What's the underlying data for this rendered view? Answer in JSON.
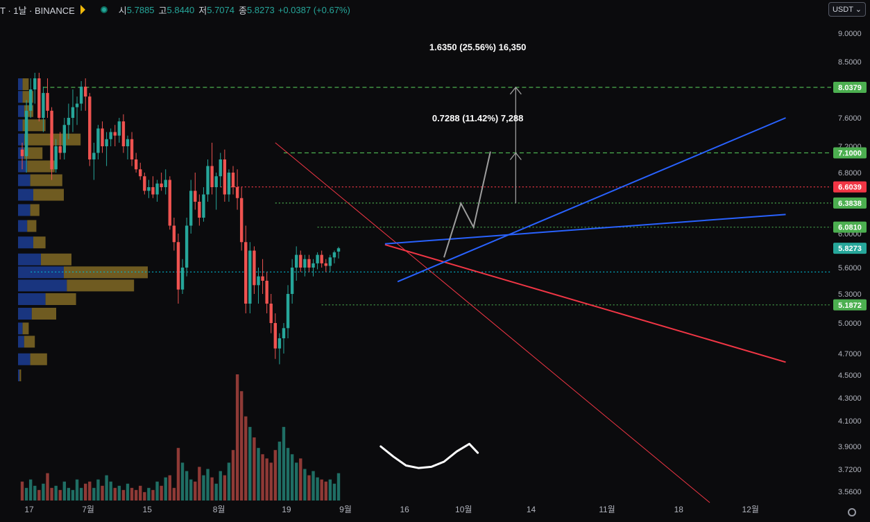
{
  "header": {
    "symbol": "T · 1날 · BINANCE",
    "open_label": "시",
    "open": "5.7885",
    "high_label": "고",
    "high": "5.8440",
    "low_label": "저",
    "low": "5.7074",
    "close_label": "종",
    "close": "5.8273",
    "change": "+0.0387 (+0.67%)"
  },
  "currency": "USDT",
  "colors": {
    "up": "#26a69a",
    "down": "#ef5350",
    "background": "#0b0b0d",
    "blue_line": "#2962ff"
  },
  "icons": [
    "flag-icon",
    "status-dot-icon",
    "chevron-down-icon",
    "settings-icon"
  ],
  "chart_data": {
    "type": "candlestick",
    "y_ticks": [
      "9.0000",
      "8.5000",
      "8.0000",
      "7.6000",
      "7.2000",
      "6.8000",
      "6.4000",
      "6.0000",
      "5.6000",
      "5.3000",
      "5.0000",
      "4.7000",
      "4.5000",
      "4.3000",
      "4.1000",
      "3.9000",
      "3.7200",
      "3.5600"
    ],
    "y_tick_values": [
      9.0,
      8.5,
      8.0,
      7.6,
      7.2,
      6.8,
      6.4,
      6.0,
      5.6,
      5.3,
      5.0,
      4.7,
      4.5,
      4.3,
      4.1,
      3.9,
      3.72,
      3.56
    ],
    "x_ticks": [
      "17",
      "7월",
      "15",
      "8월",
      "19",
      "9월",
      "16",
      "10월",
      "14",
      "11월",
      "18",
      "12월"
    ],
    "x_tick_days": [
      0,
      14,
      28,
      45,
      61,
      75,
      89,
      103,
      119,
      137,
      154,
      171
    ],
    "price_labels": [
      {
        "value": 8.0379,
        "text": "8.0379",
        "color": "#4caf50"
      },
      {
        "value": 7.1,
        "text": "7.1000",
        "color": "#4caf50"
      },
      {
        "value": 6.6039,
        "text": "6.6039",
        "color": "#f23645"
      },
      {
        "value": 6.3838,
        "text": "6.3838",
        "color": "#4caf50"
      },
      {
        "value": 6.081,
        "text": "6.0810",
        "color": "#4caf50"
      },
      {
        "value": 5.8273,
        "text": "5.8273",
        "color": "#26a69a"
      },
      {
        "value": 5.1872,
        "text": "5.1872",
        "color": "#4caf50"
      }
    ],
    "horizontal_levels": [
      {
        "value": 8.0379,
        "color": "#4caf50",
        "style": "dashed",
        "from_day": 5
      },
      {
        "value": 7.1,
        "color": "#4caf50",
        "style": "dashed",
        "from_day": 62
      },
      {
        "value": 6.6039,
        "color": "#f23645",
        "style": "dotted",
        "from_day": 47
      },
      {
        "value": 6.3838,
        "color": "#4caf50",
        "style": "dotted",
        "from_day": 60
      },
      {
        "value": 6.081,
        "color": "#4caf50",
        "style": "dotted",
        "from_day": 70
      },
      {
        "value": 5.55,
        "color": "#00bcd4",
        "style": "dotted",
        "from_day": 2
      },
      {
        "value": 5.1872,
        "color": "#4caf50",
        "style": "dotted",
        "from_day": 71
      }
    ],
    "annotations": [
      {
        "text": "1.6350 (25.56%) 16,350",
        "day": 108,
        "value": 8.7
      },
      {
        "text": "0.7288 (11.42%) 7,288",
        "day": 108,
        "value": 7.55
      }
    ],
    "trendlines": [
      {
        "from": [
          60,
          7.25
        ],
        "to": [
          163,
          3.48
        ],
        "color": "#f23645",
        "width": 1
      },
      {
        "from": [
          86,
          5.87
        ],
        "to": [
          181,
          4.62
        ],
        "color": "#f23645",
        "width": 2
      },
      {
        "from": [
          86,
          5.88
        ],
        "to": [
          181,
          6.24
        ],
        "color": "#2962ff",
        "width": 2
      },
      {
        "from": [
          89,
          5.44
        ],
        "to": [
          181,
          7.6
        ],
        "color": "#2962ff",
        "width": 2
      }
    ],
    "projection_path": [
      [
        100,
        5.72
      ],
      [
        104,
        6.38
      ],
      [
        107,
        6.08
      ],
      [
        111,
        7.12
      ]
    ],
    "arrows": [
      {
        "day": 117,
        "from": 6.38,
        "to": 7.1
      },
      {
        "day": 117,
        "from": 7.1,
        "to": 8.0379
      }
    ],
    "hand_drawn_curve": [
      [
        85,
        3.9
      ],
      [
        88,
        3.82
      ],
      [
        91,
        3.75
      ],
      [
        94,
        3.73
      ],
      [
        97,
        3.74
      ],
      [
        100,
        3.78
      ],
      [
        103,
        3.86
      ],
      [
        106,
        3.92
      ],
      [
        108,
        3.85
      ]
    ],
    "volume_profile": [
      {
        "value": 8.1,
        "up": 3,
        "down": 4
      },
      {
        "value": 7.9,
        "up": 3,
        "down": 7
      },
      {
        "value": 7.7,
        "up": 4,
        "down": 6
      },
      {
        "value": 7.5,
        "up": 3,
        "down": 15
      },
      {
        "value": 7.3,
        "up": 4,
        "down": 37
      },
      {
        "value": 7.1,
        "up": 4,
        "down": 12
      },
      {
        "value": 6.9,
        "up": 6,
        "down": 18
      },
      {
        "value": 6.7,
        "up": 8,
        "down": 21
      },
      {
        "value": 6.5,
        "up": 10,
        "down": 20
      },
      {
        "value": 6.3,
        "up": 8,
        "down": 6
      },
      {
        "value": 6.1,
        "up": 6,
        "down": 6
      },
      {
        "value": 5.9,
        "up": 10,
        "down": 8
      },
      {
        "value": 5.7,
        "up": 15,
        "down": 20
      },
      {
        "value": 5.55,
        "up": 30,
        "down": 55
      },
      {
        "value": 5.4,
        "up": 32,
        "down": 44
      },
      {
        "value": 5.25,
        "up": 18,
        "down": 20
      },
      {
        "value": 5.1,
        "up": 9,
        "down": 16
      },
      {
        "value": 4.95,
        "up": 3,
        "down": 4
      },
      {
        "value": 4.82,
        "up": 4,
        "down": 7
      },
      {
        "value": 4.65,
        "up": 8,
        "down": 11
      },
      {
        "value": 4.5,
        "up": 1,
        "down": 1
      }
    ],
    "candles": [
      [
        7.15,
        7.25,
        6.85,
        7.05
      ],
      [
        7.05,
        7.85,
        6.8,
        7.7
      ],
      [
        7.7,
        8.2,
        7.6,
        8.0
      ],
      [
        8.0,
        8.3,
        7.8,
        8.2
      ],
      [
        8.2,
        8.3,
        7.55,
        7.6
      ],
      [
        7.6,
        8.05,
        7.4,
        7.95
      ],
      [
        7.95,
        8.2,
        7.6,
        7.7
      ],
      [
        7.7,
        7.75,
        6.7,
        6.85
      ],
      [
        6.85,
        7.3,
        6.8,
        7.2
      ],
      [
        7.2,
        7.4,
        7.0,
        7.1
      ],
      [
        7.1,
        7.6,
        7.0,
        7.5
      ],
      [
        7.5,
        7.8,
        7.3,
        7.6
      ],
      [
        7.6,
        8.0,
        7.4,
        7.75
      ],
      [
        7.75,
        7.9,
        7.5,
        7.8
      ],
      [
        7.8,
        8.15,
        7.7,
        8.05
      ],
      [
        8.05,
        8.2,
        7.7,
        7.9
      ],
      [
        7.9,
        7.95,
        6.9,
        7.0
      ],
      [
        7.0,
        7.25,
        6.7,
        7.1
      ],
      [
        7.1,
        7.5,
        7.0,
        7.45
      ],
      [
        7.45,
        7.55,
        7.1,
        7.2
      ],
      [
        7.2,
        7.4,
        6.9,
        7.3
      ],
      [
        7.3,
        7.45,
        7.2,
        7.4
      ],
      [
        7.4,
        7.5,
        7.2,
        7.35
      ],
      [
        7.35,
        7.6,
        7.25,
        7.55
      ],
      [
        7.55,
        7.65,
        7.1,
        7.2
      ],
      [
        7.2,
        7.35,
        7.0,
        7.3
      ],
      [
        7.3,
        7.4,
        6.9,
        7.0
      ],
      [
        7.0,
        7.1,
        6.8,
        6.85
      ],
      [
        6.85,
        6.95,
        6.7,
        6.75
      ],
      [
        6.75,
        6.8,
        6.5,
        6.55
      ],
      [
        6.55,
        6.7,
        6.45,
        6.6
      ],
      [
        6.6,
        6.75,
        6.45,
        6.5
      ],
      [
        6.5,
        6.7,
        6.4,
        6.65
      ],
      [
        6.65,
        6.8,
        6.55,
        6.6
      ],
      [
        6.6,
        6.85,
        6.5,
        6.7
      ],
      [
        6.7,
        6.75,
        6.05,
        6.1
      ],
      [
        6.1,
        6.2,
        5.8,
        5.9
      ],
      [
        5.9,
        6.0,
        5.2,
        5.35
      ],
      [
        5.35,
        5.7,
        5.3,
        5.6
      ],
      [
        5.6,
        6.2,
        5.5,
        6.1
      ],
      [
        6.1,
        6.7,
        6.0,
        6.55
      ],
      [
        6.55,
        6.8,
        6.3,
        6.4
      ],
      [
        6.4,
        6.5,
        6.1,
        6.2
      ],
      [
        6.2,
        6.6,
        6.15,
        6.5
      ],
      [
        6.5,
        7.0,
        6.4,
        6.9
      ],
      [
        6.9,
        7.25,
        6.5,
        6.6
      ],
      [
        6.6,
        6.8,
        6.3,
        6.75
      ],
      [
        6.75,
        7.1,
        6.6,
        7.0
      ],
      [
        7.0,
        7.15,
        6.4,
        6.5
      ],
      [
        6.5,
        6.85,
        6.4,
        6.8
      ],
      [
        6.8,
        6.9,
        6.5,
        6.6
      ],
      [
        6.6,
        6.85,
        6.3,
        6.45
      ],
      [
        6.45,
        6.6,
        5.8,
        5.9
      ],
      [
        5.9,
        6.1,
        5.1,
        5.2
      ],
      [
        5.2,
        5.9,
        5.1,
        5.8
      ],
      [
        5.8,
        5.85,
        5.3,
        5.4
      ],
      [
        5.4,
        5.6,
        5.2,
        5.5
      ],
      [
        5.5,
        5.7,
        5.3,
        5.45
      ],
      [
        5.45,
        5.55,
        5.1,
        5.2
      ],
      [
        5.2,
        5.3,
        4.9,
        5.0
      ],
      [
        5.0,
        5.1,
        4.65,
        4.75
      ],
      [
        4.75,
        4.9,
        4.6,
        4.85
      ],
      [
        4.85,
        5.0,
        4.7,
        4.95
      ],
      [
        4.95,
        5.4,
        4.85,
        5.3
      ],
      [
        5.3,
        5.7,
        5.2,
        5.6
      ],
      [
        5.6,
        5.85,
        5.45,
        5.75
      ],
      [
        5.75,
        5.8,
        5.55,
        5.6
      ],
      [
        5.6,
        5.75,
        5.5,
        5.7
      ],
      [
        5.7,
        5.75,
        5.55,
        5.6
      ],
      [
        5.6,
        5.7,
        5.5,
        5.65
      ],
      [
        5.65,
        5.78,
        5.58,
        5.75
      ],
      [
        5.75,
        5.8,
        5.6,
        5.65
      ],
      [
        5.65,
        5.7,
        5.55,
        5.62
      ],
      [
        5.62,
        5.75,
        5.55,
        5.72
      ],
      [
        5.72,
        5.8,
        5.65,
        5.78
      ],
      [
        5.7885,
        5.844,
        5.7074,
        5.8273
      ]
    ],
    "volumes": [
      9,
      6,
      10,
      7,
      5,
      8,
      13,
      6,
      7,
      5,
      9,
      6,
      5,
      10,
      6,
      8,
      9,
      6,
      10,
      7,
      12,
      9,
      6,
      7,
      5,
      8,
      6,
      5,
      7,
      4,
      6,
      5,
      9,
      7,
      11,
      12,
      6,
      25,
      18,
      14,
      10,
      9,
      16,
      12,
      15,
      11,
      8,
      14,
      12,
      18,
      24,
      60,
      52,
      40,
      35,
      30,
      25,
      22,
      20,
      18,
      24,
      28,
      35,
      25,
      22,
      18,
      20,
      15,
      12,
      14,
      11,
      10,
      9,
      10,
      8,
      13
    ]
  }
}
